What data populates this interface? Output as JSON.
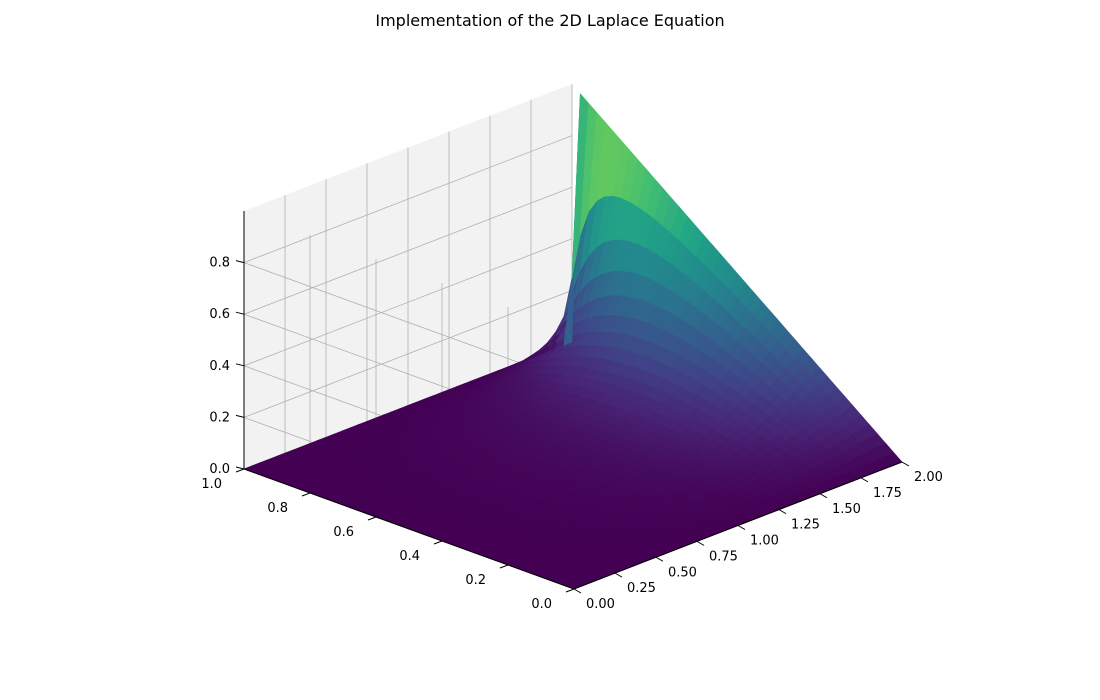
{
  "chart_data": {
    "type": "surface3d",
    "title": "Implementation of the 2D Laplace Equation",
    "xlabel": "",
    "ylabel": "",
    "zlabel": "",
    "x_range": [
      0,
      2
    ],
    "y_range": [
      0,
      1
    ],
    "z_range": [
      0,
      1
    ],
    "x_ticks": [
      "0.00",
      "0.25",
      "0.50",
      "0.75",
      "1.00",
      "1.25",
      "1.50",
      "1.75",
      "2.00"
    ],
    "y_ticks": [
      "0.0",
      "0.2",
      "0.4",
      "0.6",
      "0.8",
      "1.0"
    ],
    "z_ticks": [
      "0.0",
      "0.2",
      "0.4",
      "0.6",
      "0.8"
    ],
    "boundary_conditions": {
      "p(x, 0)": "0",
      "p(x, 1)": "0",
      "p(0, y)": "0",
      "p(2, y)": "y"
    },
    "max_value": 1.0,
    "colormap": "viridis",
    "grid": true,
    "pane_color": "#f2f2f2",
    "grid_color": "#b0b0b0"
  }
}
